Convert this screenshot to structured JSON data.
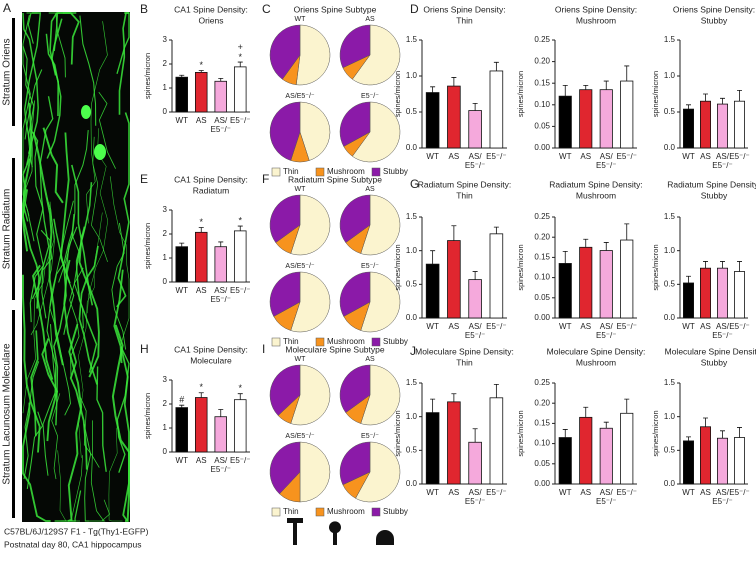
{
  "image_panel": {
    "label": "A",
    "layers": [
      "Stratum Oriens",
      "Stratum Radiatum",
      "Stratum Lacunosum Moleculare"
    ],
    "caption": [
      "C57BL/6J/129S7 F1 - Tg(Thy1-EGFP)",
      "Postnatal day 80, CA1 hippocampus"
    ]
  },
  "chart_data": [
    {
      "type": "bar",
      "panel": "B",
      "title": "CA1 Spine Density:",
      "subtitle": "Oriens",
      "ylabel": "spines/micron",
      "categories": [
        "WT",
        "AS",
        "AS/\nE5⁻/⁻",
        "E5⁻/⁻"
      ],
      "values": [
        1.45,
        1.65,
        1.28,
        1.88
      ],
      "errors": [
        0.08,
        0.08,
        0.12,
        0.2
      ],
      "colors": [
        "#000000",
        "#e0262f",
        "#f5a9dc",
        "#ffffff"
      ],
      "ylim": [
        0,
        3
      ],
      "yticks": [
        0,
        1,
        2,
        3
      ],
      "annotations": [
        {
          "x": "AS",
          "text": "*"
        },
        {
          "x": "E5⁻/⁻",
          "text": "+\n*"
        }
      ]
    },
    {
      "type": "pie",
      "panel": "C",
      "title": "Oriens Spine Subtype",
      "labels": [
        "Thin",
        "Mushroom",
        "Stubby"
      ],
      "colors": [
        "#fbf4cf",
        "#f7931e",
        "#8b1aa8"
      ],
      "pies": [
        {
          "name": "WT",
          "values": [
            52,
            8,
            40
          ]
        },
        {
          "name": "AS",
          "values": [
            60,
            8,
            32
          ]
        },
        {
          "name": "AS/E5⁻/⁻",
          "values": [
            45,
            10,
            45
          ]
        },
        {
          "name": "E5⁻/⁻",
          "values": [
            60,
            7,
            33
          ]
        }
      ]
    },
    {
      "type": "bar",
      "panel": "D",
      "title": "Oriens Spine Density:",
      "subtitle": "Thin",
      "ylabel": "spines/micron",
      "categories": [
        "WT",
        "AS",
        "AS/\nE5⁻/⁻",
        "E5⁻/⁻"
      ],
      "values": [
        0.77,
        0.86,
        0.52,
        1.07
      ],
      "errors": [
        0.08,
        0.12,
        0.1,
        0.12
      ],
      "colors": [
        "#000000",
        "#e0262f",
        "#f5a9dc",
        "#ffffff"
      ],
      "ylim": [
        0,
        1.5
      ],
      "yticks": [
        {
          "value": 0,
          "label": "0.0"
        },
        0.5,
        {
          "value": 1,
          "label": "1.0"
        },
        1.5
      ]
    },
    {
      "type": "bar",
      "title": "Oriens Spine Density:",
      "subtitle": "Mushroom",
      "ylabel": "spines/micron",
      "categories": [
        "WT",
        "AS",
        "AS/\nE5⁻/⁻",
        "E5⁻/⁻"
      ],
      "values": [
        0.12,
        0.135,
        0.135,
        0.155
      ],
      "errors": [
        0.025,
        0.01,
        0.02,
        0.035
      ],
      "colors": [
        "#000000",
        "#e0262f",
        "#f5a9dc",
        "#ffffff"
      ],
      "ylim": [
        0,
        0.25
      ],
      "yticks": [
        {
          "value": 0,
          "label": "0.00"
        },
        0.05,
        {
          "value": 0.1,
          "label": "0.10"
        },
        0.15,
        {
          "value": 0.2,
          "label": "0.20"
        },
        0.25
      ]
    },
    {
      "type": "bar",
      "title": "Oriens Spine Density:",
      "subtitle": "Stubby",
      "ylabel": "spines/micron",
      "categories": [
        "WT",
        "AS",
        "AS/\nE5⁻/⁻",
        "E5⁻/⁻"
      ],
      "values": [
        0.54,
        0.65,
        0.61,
        0.65
      ],
      "errors": [
        0.06,
        0.1,
        0.08,
        0.15
      ],
      "colors": [
        "#000000",
        "#e0262f",
        "#f5a9dc",
        "#ffffff"
      ],
      "ylim": [
        0,
        1.5
      ],
      "yticks": [
        {
          "value": 0,
          "label": "0.0"
        },
        0.5,
        {
          "value": 1,
          "label": "1.0"
        },
        1.5
      ]
    },
    {
      "type": "bar",
      "panel": "E",
      "title": "CA1 Spine Density:",
      "subtitle": "Radiatum",
      "ylabel": "spines/micron",
      "categories": [
        "WT",
        "AS",
        "AS/\nE5⁻/⁻",
        "E5⁻/⁻"
      ],
      "values": [
        1.47,
        2.07,
        1.47,
        2.13
      ],
      "errors": [
        0.15,
        0.2,
        0.2,
        0.2
      ],
      "colors": [
        "#000000",
        "#e0262f",
        "#f5a9dc",
        "#ffffff"
      ],
      "ylim": [
        0,
        3
      ],
      "yticks": [
        0,
        1,
        2,
        3
      ],
      "annotations": [
        {
          "x": "AS",
          "text": "*"
        },
        {
          "x": "E5⁻/⁻",
          "text": "*"
        }
      ]
    },
    {
      "type": "pie",
      "panel": "F",
      "title": "Radiatum Spine Subtype",
      "labels": [
        "Thin",
        "Mushroom",
        "Stubby"
      ],
      "colors": [
        "#fbf4cf",
        "#f7931e",
        "#8b1aa8"
      ],
      "pies": [
        {
          "name": "WT",
          "values": [
            55,
            10,
            35
          ]
        },
        {
          "name": "AS",
          "values": [
            55,
            10,
            35
          ]
        },
        {
          "name": "AS/E5⁻/⁻",
          "values": [
            55,
            12,
            33
          ]
        },
        {
          "name": "E5⁻/⁻",
          "values": [
            55,
            12,
            33
          ]
        }
      ]
    },
    {
      "type": "bar",
      "panel": "G",
      "title": "Radiatum Spine Density:",
      "subtitle": "Thin",
      "ylabel": "spines/micron",
      "categories": [
        "WT",
        "AS",
        "AS/\nE5⁻/⁻",
        "E5⁻/⁻"
      ],
      "values": [
        0.8,
        1.15,
        0.57,
        1.25
      ],
      "errors": [
        0.2,
        0.22,
        0.12,
        0.1
      ],
      "colors": [
        "#000000",
        "#e0262f",
        "#f5a9dc",
        "#ffffff"
      ],
      "ylim": [
        0,
        1.5
      ],
      "yticks": [
        {
          "value": 0,
          "label": "0.0"
        },
        0.5,
        {
          "value": 1,
          "label": "1.0"
        },
        1.5
      ]
    },
    {
      "type": "bar",
      "title": "Radiatum Spine Density:",
      "subtitle": "Mushroom",
      "ylabel": "spines/micron",
      "categories": [
        "WT",
        "AS",
        "AS/\nE5⁻/⁻",
        "E5⁻/⁻"
      ],
      "values": [
        0.135,
        0.175,
        0.167,
        0.193
      ],
      "errors": [
        0.03,
        0.02,
        0.02,
        0.04
      ],
      "colors": [
        "#000000",
        "#e0262f",
        "#f5a9dc",
        "#ffffff"
      ],
      "ylim": [
        0,
        0.25
      ],
      "yticks": [
        {
          "value": 0,
          "label": "0.00"
        },
        0.05,
        {
          "value": 0.1,
          "label": "0.10"
        },
        0.15,
        {
          "value": 0.2,
          "label": "0.20"
        },
        0.25
      ]
    },
    {
      "type": "bar",
      "title": "Radiatum Spine Density:",
      "subtitle": "Stubby",
      "ylabel": "spines/micron",
      "categories": [
        "WT",
        "AS",
        "AS/\nE5⁻/⁻",
        "E5⁻/⁻"
      ],
      "values": [
        0.52,
        0.74,
        0.74,
        0.69
      ],
      "errors": [
        0.1,
        0.1,
        0.1,
        0.15
      ],
      "colors": [
        "#000000",
        "#e0262f",
        "#f5a9dc",
        "#ffffff"
      ],
      "ylim": [
        0,
        1.5
      ],
      "yticks": [
        {
          "value": 0,
          "label": "0.0"
        },
        0.5,
        {
          "value": 1,
          "label": "1.0"
        },
        1.5
      ]
    },
    {
      "type": "bar",
      "panel": "H",
      "title": "CA1 Spine Density:",
      "subtitle": "Moleculare",
      "ylabel": "spines/micron",
      "categories": [
        "WT",
        "AS",
        "AS/\nE5⁻/⁻",
        "E5⁻/⁻"
      ],
      "values": [
        1.85,
        2.27,
        1.47,
        2.18
      ],
      "errors": [
        0.1,
        0.2,
        0.3,
        0.25
      ],
      "colors": [
        "#000000",
        "#e0262f",
        "#f5a9dc",
        "#ffffff"
      ],
      "ylim": [
        0,
        3
      ],
      "yticks": [
        0,
        1,
        2,
        3
      ],
      "annotations": [
        {
          "x": "WT",
          "text": "#"
        },
        {
          "x": "AS",
          "text": "*"
        },
        {
          "x": "E5⁻/⁻",
          "text": "*"
        }
      ]
    },
    {
      "type": "pie",
      "panel": "I",
      "title": "Moleculare Spine Subtype",
      "labels": [
        "Thin",
        "Mushroom",
        "Stubby"
      ],
      "colors": [
        "#fbf4cf",
        "#f7931e",
        "#8b1aa8"
      ],
      "pies": [
        {
          "name": "WT",
          "values": [
            55,
            8,
            37
          ]
        },
        {
          "name": "AS",
          "values": [
            55,
            10,
            35
          ]
        },
        {
          "name": "AS/E5⁻/⁻",
          "values": [
            50,
            12,
            38
          ]
        },
        {
          "name": "E5⁻/⁻",
          "values": [
            58,
            10,
            32
          ]
        }
      ]
    },
    {
      "type": "bar",
      "panel": "J",
      "title": "Moleculare Spine Density:",
      "subtitle": "Thin",
      "ylabel": "spines/micron",
      "categories": [
        "WT",
        "AS",
        "AS/\nE5⁻/⁻",
        "E5⁻/⁻"
      ],
      "values": [
        1.06,
        1.22,
        0.62,
        1.28
      ],
      "errors": [
        0.2,
        0.12,
        0.2,
        0.2
      ],
      "colors": [
        "#000000",
        "#e0262f",
        "#f5a9dc",
        "#ffffff"
      ],
      "ylim": [
        0,
        1.5
      ],
      "yticks": [
        {
          "value": 0,
          "label": "0.0"
        },
        0.5,
        {
          "value": 1,
          "label": "1.0"
        },
        1.5
      ]
    },
    {
      "type": "bar",
      "title": "Moleculare Spine Density:",
      "subtitle": "Mushroom",
      "ylabel": "spines/micron",
      "categories": [
        "WT",
        "AS",
        "AS/\nE5⁻/⁻",
        "E5⁻/⁻"
      ],
      "values": [
        0.115,
        0.165,
        0.138,
        0.175
      ],
      "errors": [
        0.02,
        0.025,
        0.015,
        0.035
      ],
      "colors": [
        "#000000",
        "#e0262f",
        "#f5a9dc",
        "#ffffff"
      ],
      "ylim": [
        0,
        0.25
      ],
      "yticks": [
        {
          "value": 0,
          "label": "0.00"
        },
        0.05,
        {
          "value": 0.1,
          "label": "0.10"
        },
        0.15,
        {
          "value": 0.2,
          "label": "0.20"
        },
        0.25
      ]
    },
    {
      "type": "bar",
      "title": "Moleculare Spine Density:",
      "subtitle": "Stubby",
      "ylabel": "spines/micron",
      "categories": [
        "WT",
        "AS",
        "AS/\nE5⁻/⁻",
        "E5⁻/⁻"
      ],
      "values": [
        0.64,
        0.85,
        0.68,
        0.69
      ],
      "errors": [
        0.06,
        0.13,
        0.11,
        0.15
      ],
      "colors": [
        "#000000",
        "#e0262f",
        "#f5a9dc",
        "#ffffff"
      ],
      "ylim": [
        0,
        1.5
      ],
      "yticks": [
        {
          "value": 0,
          "label": "0.0"
        },
        0.5,
        {
          "value": 1,
          "label": "1.0"
        },
        1.5
      ]
    }
  ]
}
